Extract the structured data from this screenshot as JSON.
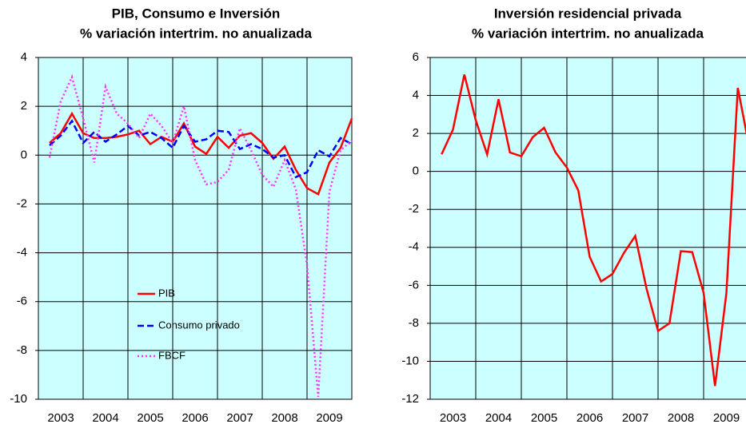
{
  "chart_data": [
    {
      "type": "line",
      "title": "PIB, Consumo e Inversión",
      "subtitle": "% variación intertrim. no anualizada",
      "x": [
        2003.25,
        2003.5,
        2003.75,
        2004,
        2004.25,
        2004.5,
        2004.75,
        2005,
        2005.25,
        2005.5,
        2005.75,
        2006,
        2006.25,
        2006.5,
        2006.75,
        2007,
        2007.25,
        2007.5,
        2007.75,
        2008,
        2008.25,
        2008.5,
        2008.75,
        2009,
        2009.25,
        2009.5,
        2009.75,
        2010
      ],
      "series": [
        {
          "name": "PIB",
          "color": "#ff0000",
          "style": "solid",
          "values": [
            0.5,
            0.9,
            1.7,
            0.9,
            0.7,
            0.7,
            0.75,
            0.85,
            1.0,
            0.45,
            0.75,
            0.55,
            1.3,
            0.35,
            0.05,
            0.75,
            0.3,
            0.8,
            0.9,
            0.5,
            -0.15,
            0.35,
            -0.6,
            -1.35,
            -1.6,
            -0.3,
            0.3,
            1.5
          ]
        },
        {
          "name": "Consumo privado",
          "color": "#0000ff",
          "style": "dashed",
          "values": [
            0.4,
            0.8,
            1.4,
            0.5,
            0.95,
            0.55,
            0.85,
            1.2,
            0.8,
            0.95,
            0.7,
            0.3,
            1.2,
            0.55,
            0.65,
            1.0,
            0.95,
            0.25,
            0.45,
            0.25,
            -0.1,
            0.0,
            -0.9,
            -0.7,
            0.2,
            -0.05,
            0.7,
            0.45
          ]
        },
        {
          "name": "FBCF",
          "color": "#ff33ff",
          "style": "dotted",
          "values": [
            -0.1,
            2.2,
            3.2,
            1.5,
            -0.3,
            2.8,
            1.7,
            1.3,
            0.7,
            1.7,
            1.2,
            0.5,
            2.0,
            -0.2,
            -1.2,
            -1.1,
            -0.6,
            1.1,
            0.2,
            -0.8,
            -1.3,
            -0.2,
            -1.4,
            -4.5,
            -9.9,
            -1.5,
            0.2,
            0.6
          ]
        }
      ],
      "xlim": [
        2003,
        2010
      ],
      "xticks": [
        {
          "value": 2003.5,
          "label": "2003"
        },
        {
          "value": 2004.5,
          "label": "2004"
        },
        {
          "value": 2005.5,
          "label": "2005"
        },
        {
          "value": 2006.5,
          "label": "2006"
        },
        {
          "value": 2007.5,
          "label": "2007"
        },
        {
          "value": 2008.5,
          "label": "2008"
        },
        {
          "value": 2009.5,
          "label": "2009"
        }
      ],
      "xgrid": [
        2004,
        2005,
        2006,
        2007,
        2008,
        2009
      ],
      "ylim": [
        -10,
        4
      ],
      "yticks": [
        -10,
        -8,
        -6,
        -4,
        -2,
        0,
        2,
        4
      ],
      "grid": true,
      "legend": "center"
    },
    {
      "type": "line",
      "title": "Inversión residencial privada",
      "subtitle": "% variación intertrim. no anualizada",
      "x": [
        2003.25,
        2003.5,
        2003.75,
        2004,
        2004.25,
        2004.5,
        2004.75,
        2005,
        2005.25,
        2005.5,
        2005.75,
        2006,
        2006.25,
        2006.5,
        2006.75,
        2007,
        2007.25,
        2007.5,
        2007.75,
        2008,
        2008.25,
        2008.5,
        2008.75,
        2009,
        2009.25,
        2009.5,
        2009.75,
        2010
      ],
      "series": [
        {
          "name": null,
          "color": "#ff0000",
          "style": "solid",
          "values": [
            0.9,
            2.2,
            5.1,
            2.7,
            0.9,
            3.8,
            1.0,
            0.8,
            1.8,
            2.3,
            1.0,
            0.2,
            -1.0,
            -4.5,
            -5.8,
            -5.4,
            -4.3,
            -3.4,
            -6.2,
            -8.4,
            -8.0,
            -4.2,
            -4.25,
            -6.4,
            -11.3,
            -6.4,
            4.4,
            1.3
          ]
        }
      ],
      "xlim": [
        2003,
        2010
      ],
      "xticks": [
        {
          "value": 2003.5,
          "label": "2003"
        },
        {
          "value": 2004.5,
          "label": "2004"
        },
        {
          "value": 2005.5,
          "label": "2005"
        },
        {
          "value": 2006.5,
          "label": "2006"
        },
        {
          "value": 2007.5,
          "label": "2007"
        },
        {
          "value": 2008.5,
          "label": "2008"
        },
        {
          "value": 2009.5,
          "label": "2009"
        }
      ],
      "xgrid": [
        2004,
        2005,
        2006,
        2007,
        2008,
        2009
      ],
      "ylim": [
        -12,
        6
      ],
      "yticks": [
        -12,
        -10,
        -8,
        -6,
        -4,
        -2,
        0,
        2,
        4,
        6
      ],
      "grid": true
    }
  ]
}
